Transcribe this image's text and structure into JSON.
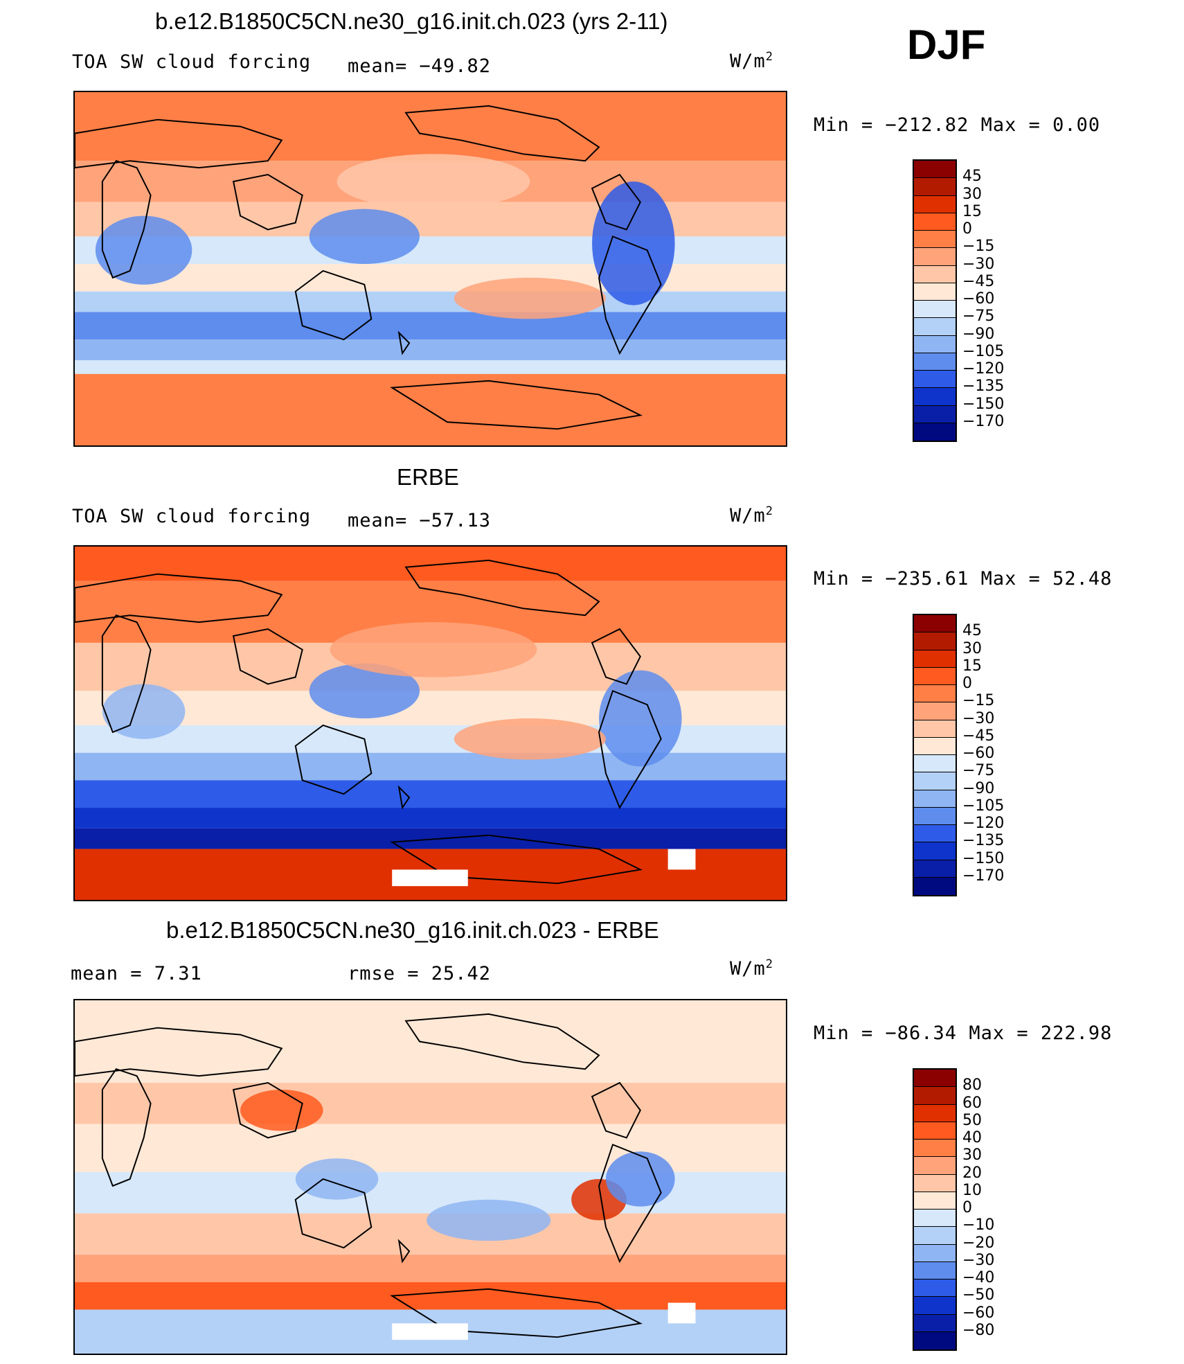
{
  "season": "DJF",
  "panels": [
    {
      "title": "b.e12.B1850C5CN.ne30_g16.init.ch.023 (yrs 2-11)",
      "left_label": "TOA SW cloud forcing",
      "middle_label": "mean= −49.82",
      "units": "W/m",
      "units_sup": "2",
      "minmax": "Min  =  −212.82  Max  =     0.00",
      "levels": [
        "45",
        "30",
        "15",
        "0",
        "−15",
        "−30",
        "−45",
        "−60",
        "−75",
        "−90",
        "−105",
        "−120",
        "−135",
        "−150",
        "−170"
      ],
      "colors": [
        "#8b0000",
        "#b31b00",
        "#e03000",
        "#ff5a1f",
        "#ff7f47",
        "#ffa37a",
        "#ffc7a8",
        "#ffe8d6",
        "#d6e8fa",
        "#b3d1f7",
        "#8fb5f2",
        "#5e8ded",
        "#2e5ce8",
        "#0f34cc",
        "#0a1fa8",
        "#000a80"
      ],
      "map_scheme": "model"
    },
    {
      "title": "ERBE",
      "left_label": "TOA SW cloud forcing",
      "middle_label": "mean= −57.13",
      "units": "W/m",
      "units_sup": "2",
      "minmax": "Min  =  −235.61  Max  =   52.48",
      "levels": [
        "45",
        "30",
        "15",
        "0",
        "−15",
        "−30",
        "−45",
        "−60",
        "−75",
        "−90",
        "−105",
        "−120",
        "−135",
        "−150",
        "−170"
      ],
      "colors": [
        "#8b0000",
        "#b31b00",
        "#e03000",
        "#ff5a1f",
        "#ff7f47",
        "#ffa37a",
        "#ffc7a8",
        "#ffe8d6",
        "#d6e8fa",
        "#b3d1f7",
        "#8fb5f2",
        "#5e8ded",
        "#2e5ce8",
        "#0f34cc",
        "#0a1fa8",
        "#000a80"
      ],
      "map_scheme": "obs"
    },
    {
      "title": "b.e12.B1850C5CN.ne30_g16.init.ch.023 - ERBE",
      "left_label": "mean =     7.31",
      "middle_label": "rmse  =   25.42",
      "units": "W/m",
      "units_sup": "2",
      "minmax": "Min  =  −86.34  Max  =  222.98",
      "levels": [
        "80",
        "60",
        "50",
        "40",
        "30",
        "20",
        "10",
        "0",
        "−10",
        "−20",
        "−30",
        "−40",
        "−50",
        "−60",
        "−80"
      ],
      "colors": [
        "#8b0000",
        "#b31b00",
        "#e03000",
        "#ff5a1f",
        "#ff7f47",
        "#ffa37a",
        "#ffc7a8",
        "#ffe8d6",
        "#d6e8fa",
        "#b3d1f7",
        "#8fb5f2",
        "#5e8ded",
        "#2e5ce8",
        "#0f34cc",
        "#0a1fa8",
        "#000a80"
      ],
      "map_scheme": "diff"
    }
  ]
}
